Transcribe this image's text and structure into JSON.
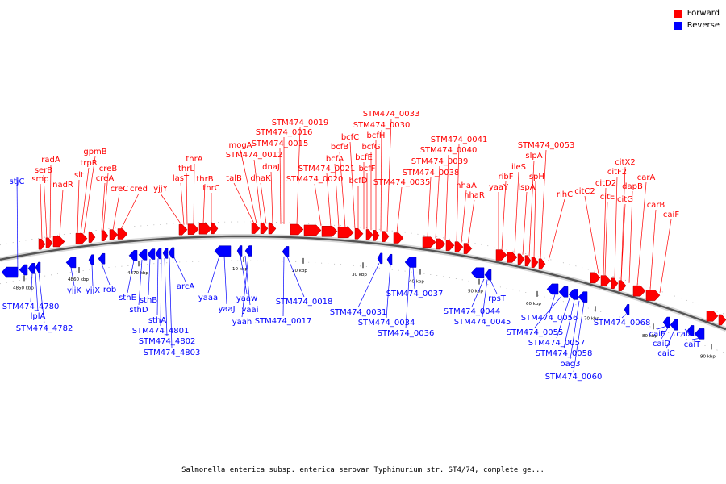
{
  "legend": {
    "forward": {
      "label": "Forward",
      "color": "#ff0000"
    },
    "reverse": {
      "label": "Reverse",
      "color": "#0000ff"
    }
  },
  "caption": "Salmonella enterica subsp. enterica serovar Typhimurium str. ST4/74, complete ge...",
  "scale_ticks": [
    "4850 kbp",
    "4860 kbp",
    "4870 kbp",
    "10 kbp",
    "20 kbp",
    "30 kbp",
    "40 kbp",
    "50 kbp",
    "60 kbp",
    "70 kbp",
    "80 kbp",
    "90 kbp"
  ],
  "forward_labels": [
    "radA",
    "serB",
    "smp",
    "nadR",
    "gpmB",
    "trpR",
    "slt",
    "creB",
    "creA",
    "creC",
    "cred",
    "yjjY",
    "thrA",
    "thrL",
    "lasT",
    "thrB",
    "thrC",
    "mogA",
    "STM474_0012",
    "talB",
    "dnaK",
    "dnaJ",
    "STM474_0015",
    "STM474_0016",
    "STM474_0019",
    "STM474_0020",
    "STM474_0021",
    "bcfA",
    "bcfB",
    "bcfC",
    "bcfD",
    "bcfE",
    "bcfF",
    "bcfG",
    "bcfH",
    "STM474_0030",
    "STM474_0033",
    "STM474_0035",
    "STM474_0038",
    "STM474_0039",
    "STM474_0040",
    "STM474_0041",
    "nhaA",
    "nhaR",
    "ribF",
    "yaaY",
    "ileS",
    "lspA",
    "slpA",
    "ispH",
    "STM474_0053",
    "rihC",
    "citC2",
    "citX2",
    "citF2",
    "citD2",
    "citE",
    "citG",
    "dapB",
    "carA",
    "carB",
    "caiF"
  ],
  "reverse_labels": [
    "stjC",
    "STM474_4780",
    "lplA",
    "STM474_4782",
    "yjjK",
    "yjjX",
    "rob",
    "sthE",
    "sthD",
    "sthB",
    "sthA",
    "STM474_4801",
    "STM474_4802",
    "STM474_4803",
    "arcA",
    "yaaa",
    "yaaJ",
    "yaaw",
    "yaai",
    "yaah",
    "STM474_0017",
    "STM474_0018",
    "STM474_0031",
    "STM474_0034",
    "STM474_0036",
    "STM474_0037",
    "STM474_0044",
    "STM474_0045",
    "rpsT",
    "STM474_0056",
    "STM474_0055",
    "STM474_0057",
    "STM474_0058",
    "oag3",
    "STM474_0060",
    "STM474_0068",
    "caiE",
    "caiD",
    "caiC",
    "caiA",
    "caiT"
  ]
}
